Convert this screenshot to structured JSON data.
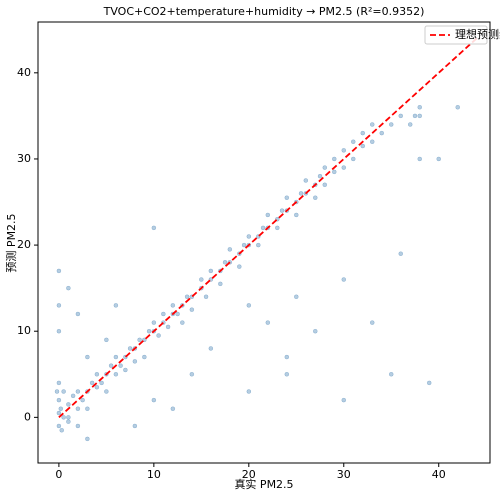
{
  "chart_data": {
    "type": "scatter",
    "title": "TVOC+CO2+temperature+humidity → PM2.5 (R²=0.9352)",
    "x_label": "真实 PM2.5",
    "y_label": "预测 PM2.5",
    "xlim": [
      -2.2,
      45.4
    ],
    "ylim": [
      -5.3,
      45.9
    ],
    "xticks": [
      0,
      10,
      20,
      30,
      40
    ],
    "yticks": [
      0,
      10,
      20,
      30,
      40
    ],
    "points": {
      "color": "#4682b4",
      "x": [
        0,
        0,
        0,
        0,
        0.2,
        0.5,
        0.5,
        1,
        1,
        1.5,
        2,
        2,
        2.5,
        3,
        3,
        3.5,
        4,
        4,
        4.5,
        5,
        5,
        5.5,
        6,
        6,
        6.5,
        7,
        7,
        7.5,
        8,
        8,
        8.5,
        9,
        9,
        9.5,
        10,
        10,
        10.5,
        11,
        11,
        11.5,
        12,
        12,
        12.5,
        13,
        13,
        13.5,
        14,
        14,
        15,
        15,
        15.5,
        16,
        16,
        17,
        17,
        17.5,
        18,
        18,
        19,
        19,
        19.5,
        20,
        20,
        21,
        21,
        21.5,
        22,
        22,
        23,
        23,
        23.5,
        24,
        24,
        25,
        25,
        25.5,
        26,
        26,
        27,
        27,
        27.5,
        28,
        28,
        29,
        29,
        30,
        30,
        31,
        31,
        32,
        32,
        33,
        33,
        34,
        35,
        36,
        37,
        37.5,
        38,
        0,
        0,
        0,
        1,
        2,
        3,
        5,
        10,
        10,
        12,
        14,
        16,
        20,
        20,
        22,
        24,
        25,
        27,
        30,
        33,
        35,
        36,
        38,
        39,
        40,
        38,
        42,
        30,
        24,
        8,
        6,
        3,
        -0.2,
        0.3,
        1,
        2
      ],
      "y": [
        0.5,
        2,
        -1,
        4,
        1,
        0,
        3,
        1.5,
        0,
        2.5,
        1,
        3,
        2,
        3,
        1,
        4,
        3.5,
        5,
        4,
        5,
        3,
        6,
        5,
        7,
        6,
        7,
        5.5,
        8,
        8,
        6.5,
        9,
        9,
        7,
        10,
        10,
        11,
        9.5,
        11,
        12,
        10.5,
        12,
        13,
        12,
        13,
        11,
        14,
        14,
        12.5,
        15,
        16,
        14,
        16,
        17,
        17,
        15.5,
        18,
        18,
        19.5,
        19,
        17.5,
        20,
        20,
        21,
        21,
        20,
        22,
        22,
        23.5,
        23,
        22,
        24,
        24,
        25.5,
        25,
        23.5,
        26,
        26,
        27.5,
        27,
        25.5,
        28,
        27,
        29,
        28.5,
        30,
        29,
        31,
        30,
        32,
        31.5,
        33,
        32,
        34,
        33,
        34,
        35,
        34,
        35,
        35,
        17,
        13,
        10,
        15,
        12,
        -2.5,
        9,
        22,
        2,
        1,
        5,
        8,
        3,
        13,
        11,
        7,
        14,
        10,
        2,
        11,
        5,
        19,
        30,
        4,
        30,
        36,
        36,
        16,
        5,
        -1,
        13,
        7,
        3,
        -1.5,
        -0.5,
        -1
      ]
    },
    "reference_line": {
      "name": "理想预测线",
      "color": "#ff0000",
      "x": [
        0,
        44
      ],
      "y": [
        0,
        44
      ]
    }
  }
}
